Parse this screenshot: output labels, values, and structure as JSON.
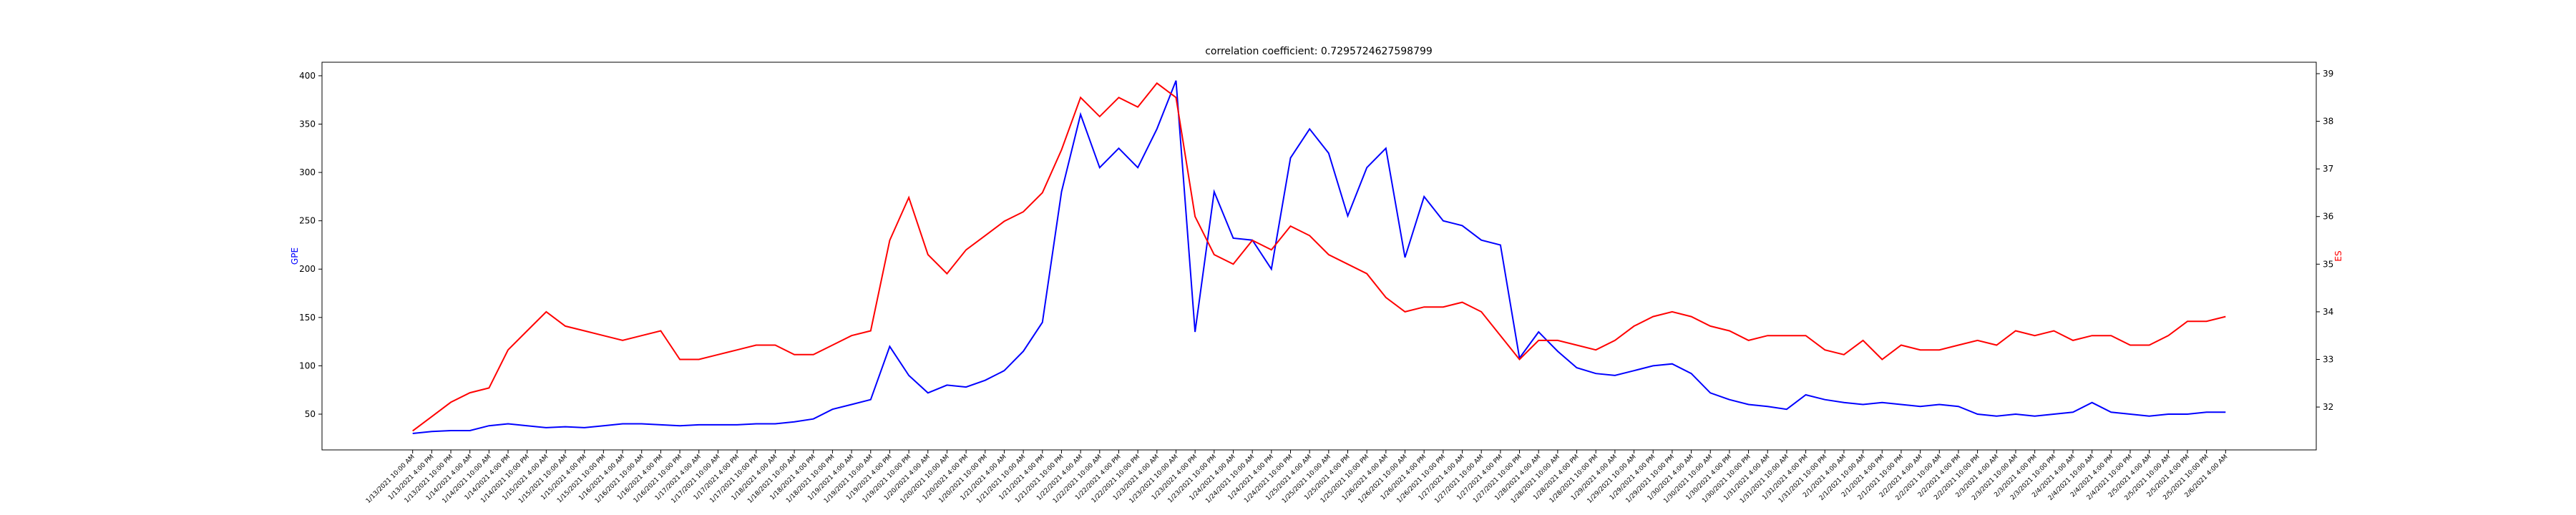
{
  "chart_data": {
    "type": "line",
    "title": "correlation coefficient: 0.7295724627598799",
    "ylabel": "GPE",
    "y2label": "ES",
    "categories": [
      "1/13/2021 10:00 AM",
      "1/13/2021 4:00 PM",
      "1/13/2021 10:00 PM",
      "1/14/2021 4:00 AM",
      "1/14/2021 10:00 AM",
      "1/14/2021 4:00 PM",
      "1/14/2021 10:00 PM",
      "1/15/2021 4:00 AM",
      "1/15/2021 10:00 AM",
      "1/15/2021 4:00 PM",
      "1/15/2021 10:00 PM",
      "1/16/2021 4:00 AM",
      "1/16/2021 10:00 AM",
      "1/16/2021 4:00 PM",
      "1/16/2021 10:00 PM",
      "1/17/2021 4:00 AM",
      "1/17/2021 10:00 AM",
      "1/17/2021 4:00 PM",
      "1/17/2021 10:00 PM",
      "1/18/2021 4:00 AM",
      "1/18/2021 10:00 AM",
      "1/18/2021 4:00 PM",
      "1/18/2021 10:00 PM",
      "1/19/2021 4:00 AM",
      "1/19/2021 10:00 AM",
      "1/19/2021 4:00 PM",
      "1/19/2021 10:00 PM",
      "1/20/2021 4:00 AM",
      "1/20/2021 10:00 AM",
      "1/20/2021 4:00 PM",
      "1/20/2021 10:00 PM",
      "1/21/2021 4:00 AM",
      "1/21/2021 10:00 AM",
      "1/21/2021 4:00 PM",
      "1/21/2021 10:00 PM",
      "1/22/2021 4:00 AM",
      "1/22/2021 10:00 AM",
      "1/22/2021 4:00 PM",
      "1/22/2021 10:00 PM",
      "1/23/2021 4:00 AM",
      "1/23/2021 10:00 AM",
      "1/23/2021 4:00 PM",
      "1/23/2021 10:00 PM",
      "1/24/2021 4:00 AM",
      "1/24/2021 10:00 AM",
      "1/24/2021 4:00 PM",
      "1/24/2021 10:00 PM",
      "1/25/2021 4:00 AM",
      "1/25/2021 10:00 AM",
      "1/25/2021 4:00 PM",
      "1/25/2021 10:00 PM",
      "1/26/2021 4:00 AM",
      "1/26/2021 10:00 AM",
      "1/26/2021 4:00 PM",
      "1/26/2021 10:00 PM",
      "1/27/2021 4:00 AM",
      "1/27/2021 10:00 AM",
      "1/27/2021 4:00 PM",
      "1/27/2021 10:00 PM",
      "1/28/2021 4:00 AM",
      "1/28/2021 10:00 AM",
      "1/28/2021 4:00 PM",
      "1/28/2021 10:00 PM",
      "1/29/2021 4:00 AM",
      "1/29/2021 10:00 AM",
      "1/29/2021 4:00 PM",
      "1/29/2021 10:00 PM",
      "1/30/2021 4:00 AM",
      "1/30/2021 10:00 AM",
      "1/30/2021 4:00 PM",
      "1/30/2021 10:00 PM",
      "1/31/2021 4:00 AM",
      "1/31/2021 10:00 AM",
      "1/31/2021 4:00 PM",
      "1/31/2021 10:00 PM",
      "2/1/2021 4:00 AM",
      "2/1/2021 10:00 AM",
      "2/1/2021 4:00 PM",
      "2/1/2021 10:00 PM",
      "2/2/2021 4:00 AM",
      "2/2/2021 10:00 AM",
      "2/2/2021 4:00 PM",
      "2/2/2021 10:00 PM",
      "2/3/2021 4:00 AM",
      "2/3/2021 10:00 AM",
      "2/3/2021 4:00 PM",
      "2/3/2021 10:00 PM",
      "2/4/2021 4:00 AM",
      "2/4/2021 10:00 AM",
      "2/4/2021 4:00 PM",
      "2/4/2021 10:00 PM",
      "2/5/2021 4:00 AM",
      "2/5/2021 10:00 AM",
      "2/5/2021 4:00 PM",
      "2/5/2021 10:00 PM",
      "2/6/2021 4:00 AM"
    ],
    "series": [
      {
        "name": "GPE",
        "color": "#0000ff",
        "values": [
          30,
          32,
          33,
          33,
          38,
          40,
          38,
          36,
          37,
          36,
          38,
          40,
          40,
          39,
          38,
          39,
          39,
          39,
          40,
          40,
          42,
          45,
          55,
          60,
          65,
          120,
          90,
          72,
          80,
          78,
          85,
          95,
          115,
          145,
          280,
          360,
          305,
          325,
          305,
          345,
          395,
          135,
          280,
          232,
          230,
          200,
          315,
          345,
          320,
          255,
          305,
          325,
          212,
          275,
          250,
          245,
          230,
          225,
          108,
          135,
          115,
          98,
          92,
          90,
          95,
          100,
          102,
          92,
          72,
          65,
          60,
          58,
          55,
          70,
          65,
          62,
          60,
          62,
          60,
          58,
          60,
          58,
          50,
          48,
          50,
          48,
          50,
          52,
          62,
          52,
          50,
          48,
          50,
          50,
          52,
          52
        ]
      },
      {
        "name": "ES",
        "color": "#ff0000",
        "axis": "y2",
        "values": [
          31.5,
          31.8,
          32.1,
          32.3,
          32.4,
          33.2,
          33.6,
          34.0,
          33.7,
          33.6,
          33.5,
          33.4,
          33.5,
          33.6,
          33.0,
          33.0,
          33.1,
          33.2,
          33.3,
          33.3,
          33.1,
          33.1,
          33.3,
          33.5,
          33.6,
          35.5,
          36.4,
          35.2,
          34.8,
          35.3,
          35.6,
          35.9,
          36.1,
          36.5,
          37.4,
          38.5,
          38.1,
          38.5,
          38.3,
          38.8,
          38.5,
          36.0,
          35.2,
          35.0,
          35.5,
          35.3,
          35.8,
          35.6,
          35.2,
          35.0,
          34.8,
          34.3,
          34.0,
          34.1,
          34.1,
          34.2,
          34.0,
          33.5,
          33.0,
          33.4,
          33.4,
          33.3,
          33.2,
          33.4,
          33.7,
          33.9,
          34.0,
          33.9,
          33.7,
          33.6,
          33.4,
          33.5,
          33.5,
          33.5,
          33.2,
          33.1,
          33.4,
          33.0,
          33.3,
          33.2,
          33.2,
          33.3,
          33.4,
          33.3,
          33.6,
          33.5,
          33.6,
          33.4,
          33.5,
          33.5,
          33.3,
          33.3,
          33.5,
          33.8,
          33.8,
          33.9
        ]
      }
    ],
    "ylim": [
      13,
      414
    ],
    "yticks": [
      50,
      100,
      150,
      200,
      250,
      300,
      350,
      400
    ],
    "y2lim": [
      31.1,
      39.24
    ],
    "y2ticks": [
      32,
      33,
      34,
      35,
      36,
      37,
      38,
      39
    ]
  }
}
